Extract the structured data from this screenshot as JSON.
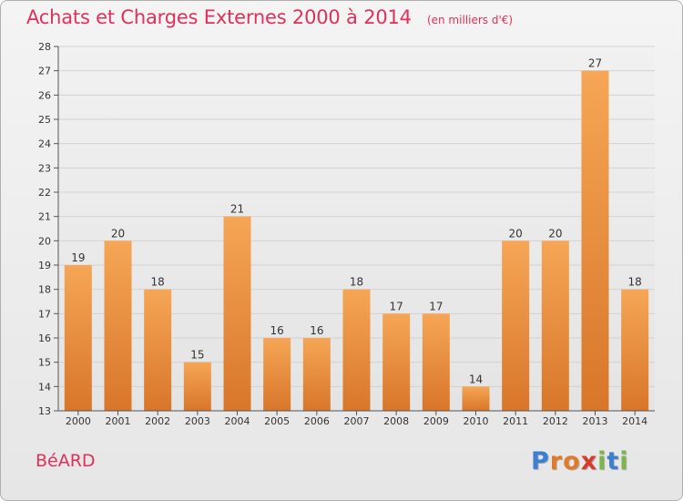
{
  "title": "Achats et Charges Externes 2000 à 2014",
  "unit": "(en milliers d'€)",
  "commune": "BéARD",
  "brand": {
    "letters": [
      "P",
      "r",
      "o",
      "x",
      "i",
      "t",
      "i"
    ],
    "colors": [
      "#3a7fd0",
      "#e07b2a",
      "#e07b2a",
      "#d93a2a",
      "#7ab648",
      "#3a7fd0",
      "#7ab648"
    ]
  },
  "colors": {
    "bar_top": "#f6a656",
    "bar_bottom": "#d8762a",
    "accent": "#e0315a"
  },
  "chart_data": {
    "type": "bar",
    "categories": [
      "2000",
      "2001",
      "2002",
      "2003",
      "2004",
      "2005",
      "2006",
      "2007",
      "2008",
      "2009",
      "2010",
      "2011",
      "2012",
      "2013",
      "2014"
    ],
    "values": [
      19,
      20,
      18,
      15,
      21,
      16,
      16,
      18,
      17,
      17,
      14,
      20,
      20,
      27,
      18
    ],
    "title": "Achats et Charges Externes 2000 à 2014",
    "ylim": [
      13,
      28
    ],
    "yticks": [
      13,
      14,
      15,
      16,
      17,
      18,
      19,
      20,
      21,
      22,
      23,
      24,
      25,
      26,
      27,
      28
    ],
    "grid": true,
    "legend": "none"
  }
}
